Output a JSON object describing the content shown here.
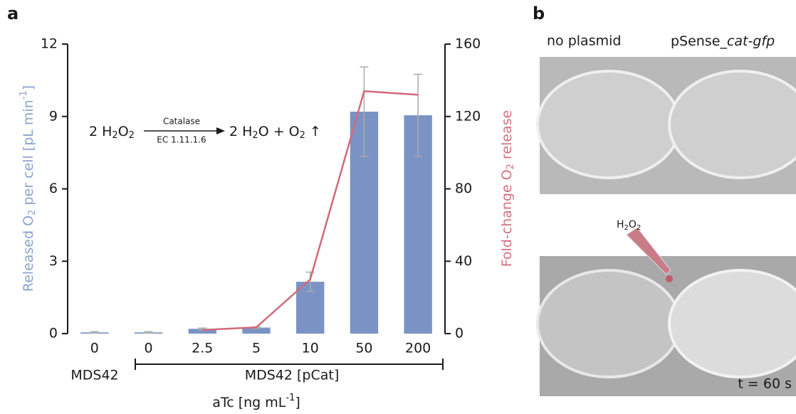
{
  "panel_labels": [
    "a",
    "b"
  ],
  "chart_data": {
    "type": "bar",
    "categories": [
      "0",
      "0",
      "2.5",
      "5",
      "10",
      "50",
      "200"
    ],
    "groups": [
      "MDS42",
      "MDS42 [pCat]"
    ],
    "xlabel": [
      "aTc [ng mL",
      "-1",
      "]"
    ],
    "ylabel": [
      "Released O",
      "2",
      " per cell [pL min",
      "-1",
      "]"
    ],
    "y2label": [
      "Fold-change O",
      "2",
      " release"
    ],
    "series": [
      {
        "type": "bar",
        "color": "#7b93c4",
        "values": [
          0.05,
          0.05,
          0.2,
          0.25,
          2.15,
          9.2,
          9.05
        ],
        "errors": [
          0.03,
          0.03,
          0.03,
          0.03,
          0.4,
          1.85,
          1.7
        ]
      },
      {
        "type": "line",
        "axis": "y2",
        "color": "#d06a7a",
        "values": [
          null,
          null,
          2,
          3.5,
          30,
          134,
          132
        ]
      }
    ],
    "ylim": [
      0,
      12
    ],
    "yticks": [
      0,
      3,
      6,
      9,
      12
    ],
    "y2lim": [
      0,
      160
    ],
    "y2ticks": [
      0,
      40,
      80,
      120,
      160
    ],
    "annotation": {
      "left": [
        "2 H",
        "2",
        "O",
        "2"
      ],
      "enzyme": "Catalase",
      "ec": "EC 1.11.1.6",
      "right": [
        "2 H",
        "2",
        "O + O",
        "2",
        " ↑"
      ]
    }
  },
  "photos": {
    "labels": [
      "no plasmid",
      "pSense_",
      "cat-gfp"
    ],
    "reagent": [
      "H",
      "2",
      "O",
      "2"
    ],
    "time": "t = 60 s"
  }
}
